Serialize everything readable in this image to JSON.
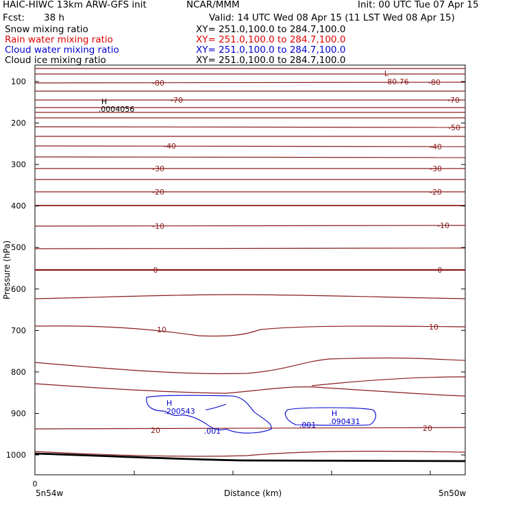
{
  "header": {
    "model": "HAIC-HIWC 13km ARW-GFS init",
    "org": "NCAR/MMM",
    "init": "Init: 00 UTC Tue 07 Apr 15",
    "fcst_label": "Fcst:",
    "fcst_value": "38 h",
    "valid": "Valid: 14 UTC Wed 08 Apr 15 (11 LST Wed 08 Apr 15)",
    "fields": [
      {
        "name": "Snow mixing ratio",
        "xy": "XY= 251.0,100.0 to 284.7,100.0",
        "color": "#000000"
      },
      {
        "name": "Rain water mixing ratio",
        "xy": "XY= 251.0,100.0 to 284.7,100.0",
        "color": "#e00000"
      },
      {
        "name": "Cloud water mixing ratio",
        "xy": "XY= 251.0,100.0 to 284.7,100.0",
        "color": "#0000d0"
      },
      {
        "name": "Cloud ice mixing ratio",
        "xy": "XY= 251.0,100.0 to 284.7,100.0",
        "color": "#000000"
      }
    ]
  },
  "chart_data": {
    "type": "cross-section contour",
    "xlabel": "Distance (km)",
    "ylabel": "Pressure (hPa)",
    "x_ticks": [
      "0"
    ],
    "x_endpoints": [
      "5n54w",
      "5n50w"
    ],
    "y_ticks": [
      100,
      200,
      300,
      400,
      500,
      600,
      700,
      800,
      900,
      1000
    ],
    "ylim": [
      1050,
      50
    ],
    "temperature_contour_labels": [
      "-80",
      "-80",
      "-70",
      "-70",
      "-50",
      "-40",
      "-40",
      "-30",
      "-30",
      "-20",
      "-20",
      "-10",
      "-10",
      "0",
      "0",
      "10",
      "10",
      "20",
      "20"
    ],
    "markers": [
      {
        "symbol": "L",
        "value": "-80.76",
        "color": "#8b1a1a"
      },
      {
        "symbol": "H",
        "value": ".0004056",
        "color": "#000000"
      },
      {
        "symbol": "H",
        "value": ".200543",
        "color": "#0000d0"
      },
      {
        "symbol": "H",
        "value": ".090431",
        "color": "#0000d0"
      }
    ],
    "cloud_water_contour_labels": [
      ".001",
      ".001"
    ],
    "colors": {
      "temperature": "#8b1a1a",
      "cloud_water": "#0000d0",
      "terrain": "#000000"
    }
  }
}
